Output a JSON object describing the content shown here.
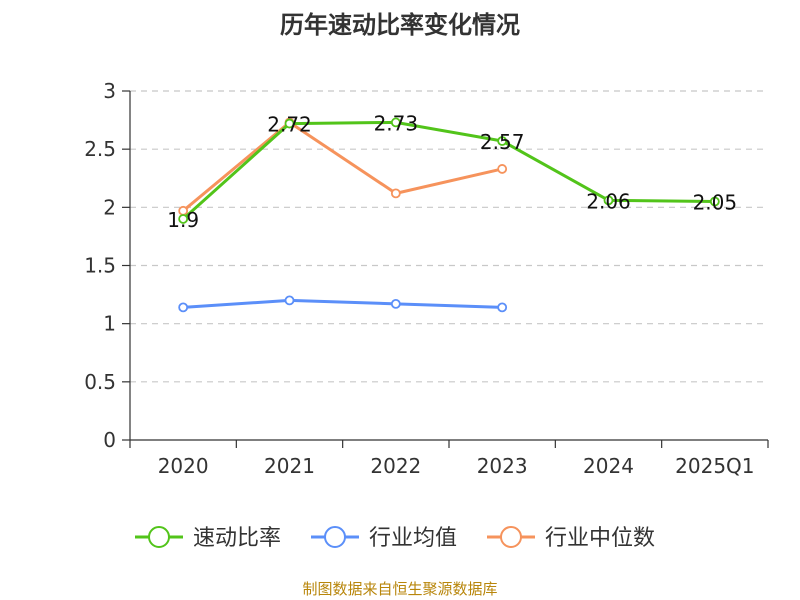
{
  "chart_data": {
    "type": "line",
    "title": "历年速动比率变化情况",
    "categories": [
      "2020",
      "2021",
      "2022",
      "2023",
      "2024",
      "2025Q1"
    ],
    "ylim": [
      0,
      3
    ],
    "yticks": [
      "0",
      "0.5",
      "1",
      "1.5",
      "2",
      "2.5",
      "3"
    ],
    "grid": true,
    "legend_position": "bottom",
    "series": [
      {
        "name": "速动比率",
        "color": "#52c41a",
        "values": [
          1.9,
          2.72,
          2.73,
          2.57,
          2.06,
          2.05
        ],
        "labels": [
          "1.9",
          "2.72",
          "2.73",
          "2.57",
          "2.06",
          "2.05"
        ]
      },
      {
        "name": "行业均值",
        "color": "#5b8ff9",
        "values": [
          1.14,
          1.2,
          1.17,
          1.14,
          null,
          null
        ]
      },
      {
        "name": "行业中位数",
        "color": "#f6935c",
        "values": [
          1.97,
          2.73,
          2.12,
          2.33,
          null,
          null
        ]
      }
    ],
    "source": "制图数据来自恒生聚源数据库"
  }
}
